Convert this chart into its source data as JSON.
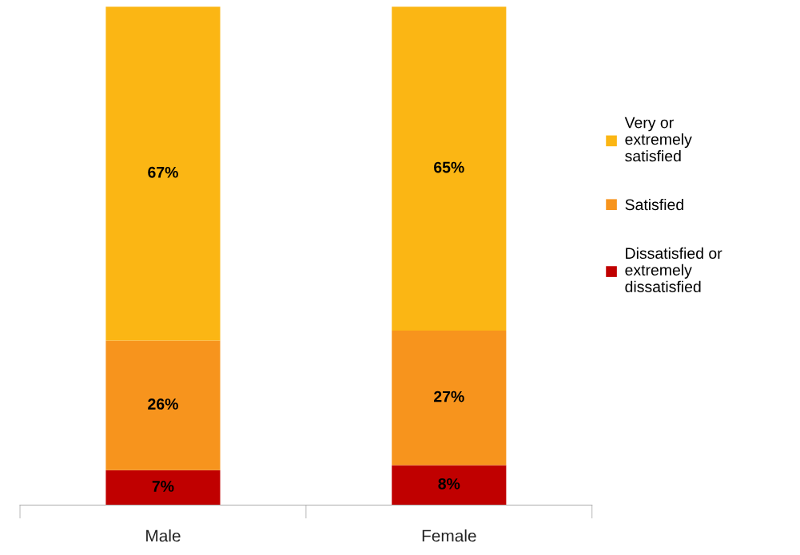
{
  "chart_data": {
    "type": "bar",
    "stacked": true,
    "legend": "right",
    "categories": [
      "Male",
      "Female"
    ],
    "series": [
      {
        "name": "Dissatisfied or extremely dissatisfied",
        "color": "#c00000",
        "values": [
          7,
          8
        ],
        "value_labels": [
          "7%",
          "8%"
        ]
      },
      {
        "name": "Satisfied",
        "color": "#f7941d",
        "values": [
          26,
          27
        ],
        "value_labels": [
          "26%",
          "27%"
        ]
      },
      {
        "name": "Very or extremely satisfied",
        "color": "#fbb614",
        "values": [
          67,
          65
        ],
        "value_labels": [
          "67%",
          "65%"
        ]
      }
    ]
  }
}
